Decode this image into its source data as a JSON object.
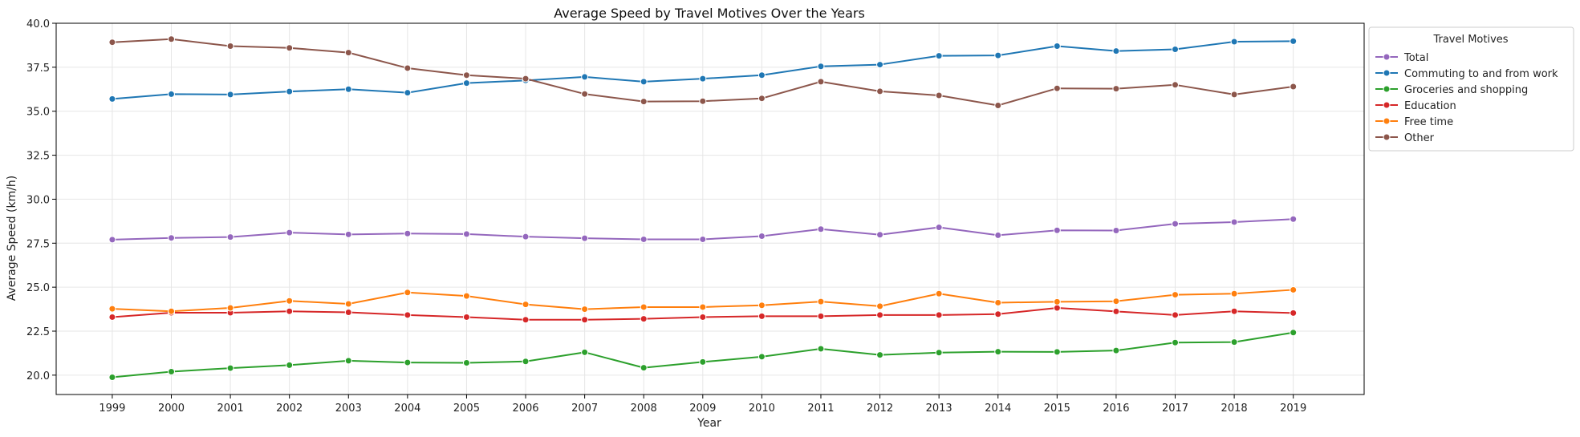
{
  "chart_data": {
    "type": "line",
    "title": "Average Speed by Travel Motives Over the Years",
    "xlabel": "Year",
    "ylabel": "Average Speed (km/h)",
    "xlim": [
      1998.05,
      2020.2
    ],
    "ylim": [
      18.9,
      40.0
    ],
    "yticks": [
      "20.0",
      "22.5",
      "25.0",
      "27.5",
      "30.0",
      "32.5",
      "35.0",
      "37.5",
      "40.0"
    ],
    "x": [
      1999,
      2000,
      2001,
      2002,
      2003,
      2004,
      2005,
      2006,
      2007,
      2008,
      2009,
      2010,
      2011,
      2012,
      2013,
      2014,
      2015,
      2016,
      2017,
      2018,
      2019
    ],
    "grid": true,
    "legend": {
      "title": "Travel Motives",
      "position": "outside-right"
    },
    "series": [
      {
        "name": "Total",
        "color": "#9467bd",
        "values": [
          27.7,
          27.8,
          27.85,
          28.1,
          28.0,
          28.05,
          28.02,
          27.87,
          27.78,
          27.72,
          27.72,
          27.9,
          28.3,
          27.98,
          28.4,
          27.95,
          28.23,
          28.22,
          28.6,
          28.7,
          28.87
        ]
      },
      {
        "name": "Commuting to and from work",
        "color": "#1f77b4",
        "values": [
          35.7,
          35.97,
          35.95,
          36.12,
          36.25,
          36.05,
          36.6,
          36.75,
          36.95,
          36.68,
          36.85,
          37.05,
          37.55,
          37.65,
          38.15,
          38.17,
          38.7,
          38.42,
          38.52,
          38.95,
          38.98
        ]
      },
      {
        "name": "Groceries and shopping",
        "color": "#2ca02c",
        "values": [
          19.88,
          20.2,
          20.4,
          20.57,
          20.82,
          20.72,
          20.7,
          20.78,
          21.3,
          20.42,
          20.75,
          21.05,
          21.5,
          21.15,
          21.28,
          21.33,
          21.32,
          21.4,
          21.85,
          21.88,
          22.42
        ]
      },
      {
        "name": "Education",
        "color": "#d62728",
        "values": [
          23.3,
          23.55,
          23.55,
          23.63,
          23.57,
          23.42,
          23.3,
          23.15,
          23.15,
          23.2,
          23.3,
          23.35,
          23.35,
          23.42,
          23.42,
          23.47,
          23.82,
          23.62,
          23.42,
          23.63,
          23.53
        ]
      },
      {
        "name": "Free time",
        "color": "#ff7f0e",
        "values": [
          23.77,
          23.63,
          23.82,
          24.22,
          24.05,
          24.7,
          24.5,
          24.02,
          23.75,
          23.87,
          23.87,
          23.97,
          24.18,
          23.92,
          24.63,
          24.12,
          24.17,
          24.2,
          24.57,
          24.63,
          24.85
        ]
      },
      {
        "name": "Other",
        "color": "#8c564b",
        "values": [
          38.92,
          39.1,
          38.7,
          38.6,
          38.33,
          37.45,
          37.05,
          36.85,
          35.98,
          35.55,
          35.57,
          35.73,
          36.68,
          36.13,
          35.9,
          35.33,
          36.3,
          36.28,
          36.5,
          35.95,
          36.4
        ]
      }
    ]
  }
}
